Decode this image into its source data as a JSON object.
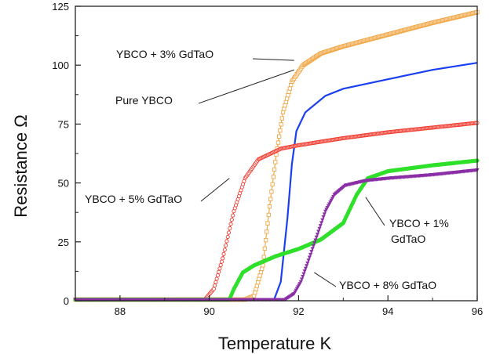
{
  "chart_data": {
    "type": "line",
    "title": "",
    "xlabel": "Temperature  K",
    "ylabel": "Resistance  Ω",
    "xlim": [
      87,
      96
    ],
    "ylim": [
      0,
      125
    ],
    "xticks": [
      88,
      90,
      92,
      94,
      96
    ],
    "yticks": [
      0,
      25,
      50,
      75,
      100,
      125
    ],
    "grid": false,
    "legend": "none",
    "series": [
      {
        "color": "#f0a848",
        "marker": "open-square",
        "points": [
          [
            87,
            0.5
          ],
          [
            90.8,
            0.5
          ],
          [
            91.0,
            2
          ],
          [
            91.2,
            15
          ],
          [
            91.35,
            40
          ],
          [
            91.5,
            62
          ],
          [
            91.65,
            80
          ],
          [
            91.85,
            93
          ],
          [
            92.1,
            100
          ],
          [
            92.5,
            105
          ],
          [
            93,
            108
          ],
          [
            94,
            113
          ],
          [
            95,
            118
          ],
          [
            96,
            122.5
          ]
        ]
      },
      {
        "color": "#1a3ff0",
        "marker": "line",
        "points": [
          [
            87,
            0.5
          ],
          [
            91.45,
            0.5
          ],
          [
            91.6,
            8
          ],
          [
            91.75,
            35
          ],
          [
            91.85,
            58
          ],
          [
            91.95,
            72
          ],
          [
            92.15,
            80
          ],
          [
            92.6,
            87
          ],
          [
            93,
            90
          ],
          [
            94,
            94
          ],
          [
            95,
            98
          ],
          [
            96,
            101
          ]
        ]
      },
      {
        "color": "#f03a2e",
        "marker": "open-circle",
        "points": [
          [
            87,
            0.5
          ],
          [
            89.9,
            0.5
          ],
          [
            90.1,
            5
          ],
          [
            90.3,
            18
          ],
          [
            90.55,
            38
          ],
          [
            90.8,
            52
          ],
          [
            91.1,
            60
          ],
          [
            91.6,
            64.5
          ],
          [
            92,
            66
          ],
          [
            93,
            69
          ],
          [
            94,
            71.5
          ],
          [
            95,
            73.5
          ],
          [
            96,
            75.5
          ]
        ]
      },
      {
        "color": "#2ee02a",
        "marker": "filled-circle",
        "points": [
          [
            87,
            0.5
          ],
          [
            90.45,
            0.5
          ],
          [
            90.55,
            5
          ],
          [
            90.75,
            12
          ],
          [
            91.0,
            15
          ],
          [
            91.5,
            19
          ],
          [
            92.0,
            22
          ],
          [
            92.5,
            26
          ],
          [
            93.0,
            33
          ],
          [
            93.3,
            45
          ],
          [
            93.55,
            52
          ],
          [
            94,
            55
          ],
          [
            95,
            57.5
          ],
          [
            96,
            59.5
          ]
        ]
      },
      {
        "color": "#8b2fa6",
        "marker": "filled-triangle",
        "points": [
          [
            87,
            0.5
          ],
          [
            91.7,
            0.5
          ],
          [
            91.9,
            3
          ],
          [
            92.05,
            8
          ],
          [
            92.2,
            16
          ],
          [
            92.4,
            27
          ],
          [
            92.6,
            38
          ],
          [
            92.8,
            45
          ],
          [
            93.05,
            49
          ],
          [
            93.5,
            51
          ],
          [
            94,
            52
          ],
          [
            95,
            53.5
          ],
          [
            96,
            55.5
          ]
        ]
      }
    ],
    "annotations": [
      {
        "text": "YBCO + 3% GdTaO",
        "target": [
          91.9,
          102
        ]
      },
      {
        "text": "Pure YBCO",
        "target": [
          91.9,
          98
        ]
      },
      {
        "text": "YBCO + 5% GdTaO",
        "target": [
          90.45,
          52
        ]
      },
      {
        "text": "YBCO + 1%",
        "text2": "GdTaO",
        "target": [
          93.5,
          44
        ]
      },
      {
        "text": "YBCO + 8% GdTaO",
        "target": [
          92.35,
          12
        ]
      }
    ]
  }
}
